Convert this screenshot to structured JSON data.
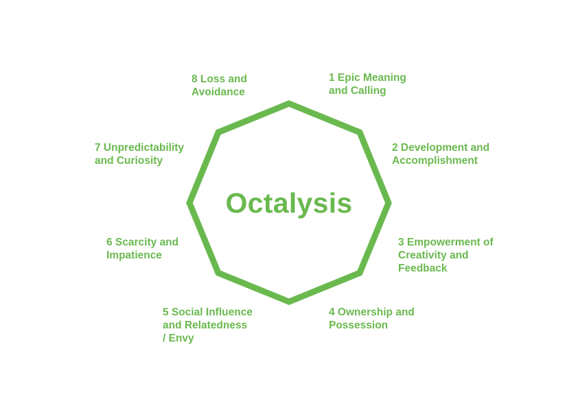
{
  "colors": {
    "accent": "#6ab94f",
    "background": "#ffffff"
  },
  "diagram": {
    "title": "Octalysis",
    "drives": [
      {
        "number": "1",
        "lines": [
          "1 Epic Meaning",
          "and Calling"
        ]
      },
      {
        "number": "2",
        "lines": [
          "2 Development and",
          "Accomplishment"
        ]
      },
      {
        "number": "3",
        "lines": [
          "3 Empowerment of",
          "Creativity and",
          "Feedback"
        ]
      },
      {
        "number": "4",
        "lines": [
          "4 Ownership and",
          "Possession"
        ]
      },
      {
        "number": "5",
        "lines": [
          "5 Social Influence",
          "and Relatedness",
          "/ Envy"
        ]
      },
      {
        "number": "6",
        "lines": [
          "6 Scarcity and",
          "Impatience"
        ]
      },
      {
        "number": "7",
        "lines": [
          "7 Unpredictability",
          "and Curiosity"
        ]
      },
      {
        "number": "8",
        "lines": [
          "8 Loss and",
          "Avoidance"
        ]
      }
    ]
  }
}
